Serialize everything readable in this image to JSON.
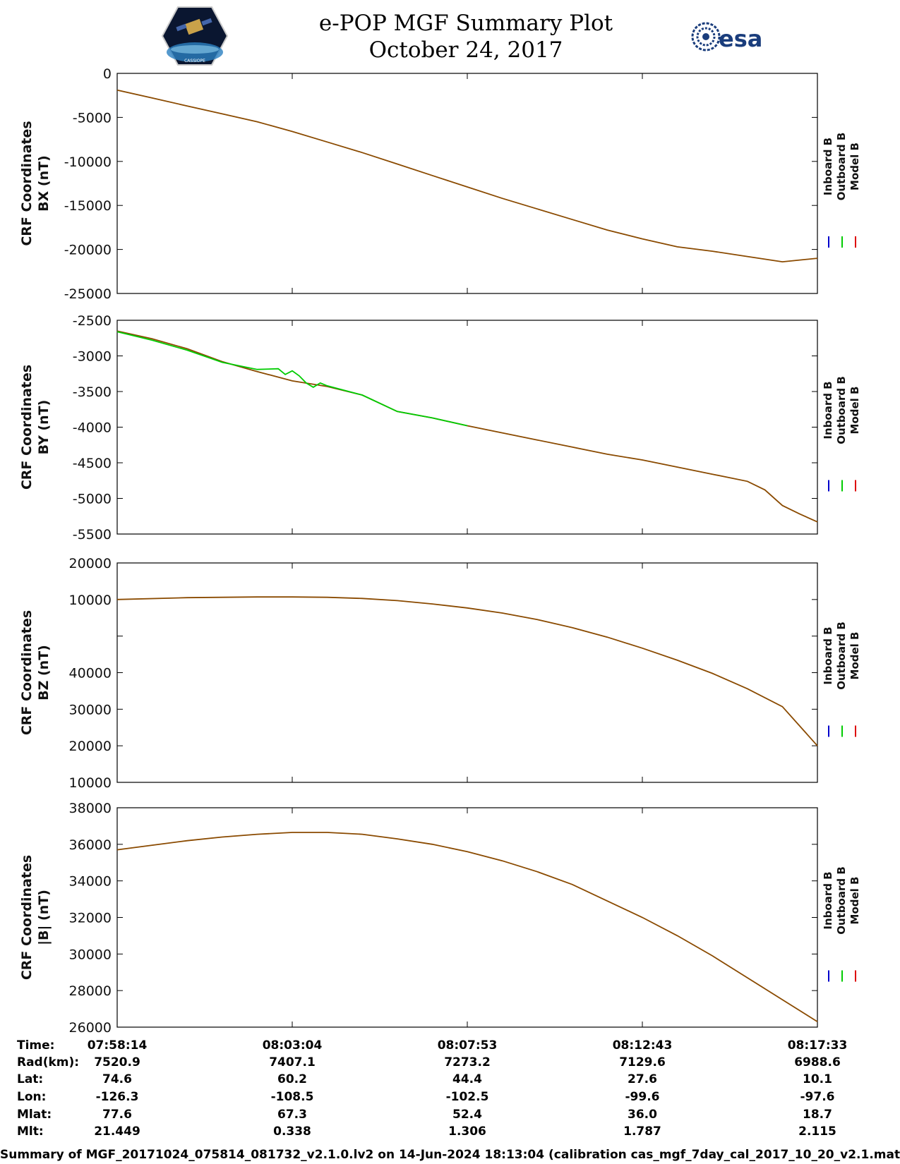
{
  "header": {
    "title_line1": "e-POP MGF Summary Plot",
    "title_line2": "October 24, 2017",
    "esa_logo_text": "esa",
    "cassiope_logo_text": "CASSIOPE"
  },
  "legend": [
    "Inboard B",
    "Outboard B",
    "Model B"
  ],
  "colors": {
    "inboard": "#0000cc",
    "outboard": "#00cc00",
    "model": "#dd0000",
    "combined": "#8a4a00"
  },
  "chart_data": [
    {
      "type": "line",
      "ylabel": [
        "CRF Coordinates",
        "BX (nT)"
      ],
      "ylim": [
        -25000,
        0
      ],
      "yticks": [
        "0",
        "-5000",
        "-10000",
        "-15000",
        "-20000",
        "-25000"
      ],
      "x": [
        0,
        0.25,
        0.5,
        0.75,
        1.0
      ],
      "series": [
        {
          "name": "Model B",
          "x": [
            0,
            0.05,
            0.1,
            0.15,
            0.2,
            0.25,
            0.3,
            0.35,
            0.4,
            0.45,
            0.5,
            0.55,
            0.6,
            0.65,
            0.7,
            0.75,
            0.8,
            0.85,
            0.9,
            0.95,
            1.0
          ],
          "values": [
            -1900,
            -2800,
            -3700,
            -4600,
            -5500,
            -6600,
            -7800,
            -9000,
            -10300,
            -11600,
            -12900,
            -14200,
            -15400,
            -16600,
            -17800,
            -18800,
            -19700,
            -20200,
            -20800,
            -21400,
            -21000
          ]
        }
      ]
    },
    {
      "type": "line",
      "ylabel": [
        "CRF Coordinates",
        "BY (nT)"
      ],
      "ylim": [
        -5500,
        -2500
      ],
      "yticks": [
        "-2500",
        "-3000",
        "-3500",
        "-4000",
        "-4500",
        "-5000",
        "-5500"
      ],
      "series": [
        {
          "name": "Model B",
          "x": [
            0,
            0.05,
            0.1,
            0.15,
            0.2,
            0.25,
            0.3,
            0.35,
            0.4,
            0.45,
            0.5,
            0.55,
            0.6,
            0.65,
            0.7,
            0.75,
            0.8,
            0.85,
            0.9,
            0.925,
            0.95,
            0.975,
            1.0
          ],
          "values": [
            -2650,
            -2760,
            -2900,
            -3080,
            -3220,
            -3350,
            -3430,
            -3550,
            -3780,
            -3870,
            -3980,
            -4080,
            -4180,
            -4280,
            -4380,
            -4460,
            -4560,
            -4660,
            -4760,
            -4880,
            -5100,
            -5220,
            -5330
          ]
        },
        {
          "name": "Outboard B",
          "x": [
            0,
            0.05,
            0.1,
            0.15,
            0.2,
            0.23,
            0.24,
            0.25,
            0.26,
            0.27,
            0.28,
            0.29,
            0.3,
            0.35,
            0.4,
            0.45,
            0.5
          ],
          "values": [
            -2660,
            -2780,
            -2920,
            -3090,
            -3190,
            -3180,
            -3260,
            -3210,
            -3280,
            -3380,
            -3440,
            -3380,
            -3420,
            -3550,
            -3780,
            -3870,
            -3980
          ]
        }
      ]
    },
    {
      "type": "line",
      "ylabel": [
        "CRF Coordinates",
        "BZ (nT)"
      ],
      "ylim": [
        10000,
        70000
      ],
      "yticks": [
        "20000",
        "10000",
        "",
        "40000",
        "30000",
        "20000",
        "10000"
      ],
      "series": [
        {
          "name": "Model B",
          "x": [
            0,
            0.1,
            0.2,
            0.25,
            0.3,
            0.35,
            0.4,
            0.45,
            0.5,
            0.55,
            0.6,
            0.65,
            0.7,
            0.75,
            0.8,
            0.85,
            0.9,
            0.95,
            1.0
          ],
          "values": [
            60000,
            60500,
            60700,
            60700,
            60600,
            60300,
            59700,
            58800,
            57700,
            56300,
            54500,
            52300,
            49700,
            46700,
            43400,
            39800,
            35600,
            30700,
            20000
          ]
        }
      ]
    },
    {
      "type": "line",
      "ylabel": [
        "CRF Coordinates",
        "|B| (nT)"
      ],
      "ylim": [
        26000,
        38000
      ],
      "yticks": [
        "38000",
        "36000",
        "34000",
        "32000",
        "30000",
        "28000",
        "26000"
      ],
      "series": [
        {
          "name": "Model B",
          "x": [
            0,
            0.05,
            0.1,
            0.15,
            0.2,
            0.25,
            0.3,
            0.35,
            0.4,
            0.45,
            0.5,
            0.55,
            0.6,
            0.65,
            0.7,
            0.75,
            0.8,
            0.85,
            0.9,
            0.95,
            1.0
          ],
          "values": [
            35700,
            35950,
            36200,
            36400,
            36550,
            36650,
            36650,
            36550,
            36300,
            36000,
            35600,
            35100,
            34500,
            33800,
            32900,
            32000,
            31000,
            29900,
            28700,
            27500,
            26300
          ]
        }
      ]
    }
  ],
  "info_table": {
    "labels": [
      "Time:",
      "Rad(km):",
      "Lat:",
      "Lon:",
      "Mlat:",
      "Mlt:"
    ],
    "columns": [
      [
        "07:58:14",
        "7520.9",
        "74.6",
        "-126.3",
        "77.6",
        "21.449"
      ],
      [
        "08:03:04",
        "7407.1",
        "60.2",
        "-108.5",
        "67.3",
        "0.338"
      ],
      [
        "08:07:53",
        "7273.2",
        "44.4",
        "-102.5",
        "52.4",
        "1.306"
      ],
      [
        "08:12:43",
        "7129.6",
        "27.6",
        "-99.6",
        "36.0",
        "1.787"
      ],
      [
        "08:17:33",
        "6988.6",
        "10.1",
        "-97.6",
        "18.7",
        "2.115"
      ]
    ]
  },
  "footer": "Summary of MGF_20171024_075814_081732_v2.1.0.lv2 on 14-Jun-2024 18:13:04 (calibration cas_mgf_7day_cal_2017_10_20_v2.1.mat )"
}
